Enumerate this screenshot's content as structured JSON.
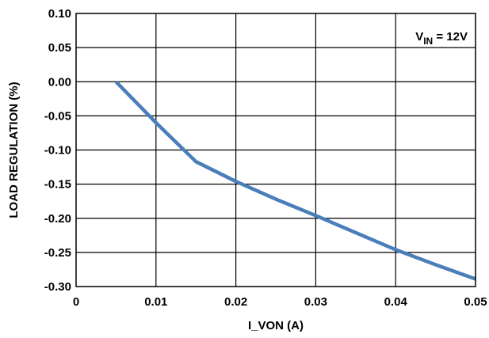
{
  "chart_data": {
    "type": "line",
    "xlabel": "I_VON (A)",
    "ylabel": "LOAD REGULATION (%)",
    "xlim": [
      0,
      0.05
    ],
    "ylim": [
      -0.3,
      0.1
    ],
    "x_ticks": [
      0,
      0.01,
      0.02,
      0.03,
      0.04,
      0.05
    ],
    "x_tick_labels": [
      "0",
      "0.01",
      "0.02",
      "0.03",
      "0.04",
      "0.05"
    ],
    "y_ticks": [
      0.1,
      0.05,
      0.0,
      -0.05,
      -0.1,
      -0.15,
      -0.2,
      -0.25,
      -0.3
    ],
    "y_tick_labels": [
      "0.10",
      "0.05",
      "0.00",
      "-0.05",
      "-0.10",
      "-0.15",
      "-0.20",
      "-0.25",
      "-0.30"
    ],
    "grid": true,
    "series": [
      {
        "color": "#4a7ebb",
        "x": [
          0.005,
          0.01,
          0.015,
          0.02,
          0.025,
          0.03,
          0.035,
          0.04,
          0.045,
          0.05
        ],
        "y": [
          0.0,
          -0.06,
          -0.117,
          -0.146,
          -0.172,
          -0.196,
          -0.221,
          -0.246,
          -0.268,
          -0.289
        ]
      }
    ],
    "annotation": {
      "main": "V",
      "sub": "IN",
      "rest": " = 12V",
      "position": "top-right"
    }
  }
}
